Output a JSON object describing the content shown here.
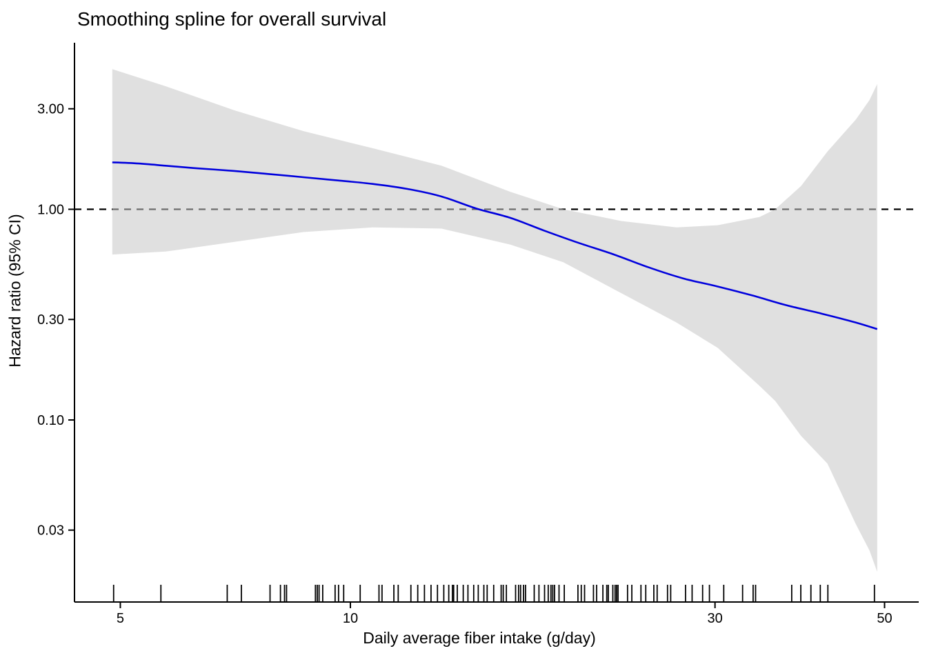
{
  "title": "Smoothing spline for overall survival",
  "colors": {
    "spline": "#0000dd",
    "ci_band_fill": "rgba(198,198,198,0.55)",
    "reference_line": "#000000",
    "axis": "#000000",
    "background": "#ffffff"
  },
  "chart_data": {
    "type": "line",
    "title": "Smoothing spline for overall survival",
    "xlabel": "Daily average fiber intake (g/day)",
    "ylabel": "Hazard ratio (95% CI)",
    "x_scale": "log10",
    "y_scale": "log10",
    "x_ticks": [
      5,
      10,
      30,
      50
    ],
    "y_ticks_labels": [
      "3.00",
      "1.00",
      "0.30",
      "0.10",
      "0.03"
    ],
    "y_ticks_values": [
      3.0,
      1.0,
      0.3,
      0.1,
      0.03
    ],
    "x_axis_range": [
      4.35,
      55.4
    ],
    "y_axis_range": [
      0.012,
      6.2
    ],
    "reference_hr": 1.0,
    "legend": "none",
    "grid": "off",
    "curve": {
      "x": [
        4.88,
        5.28,
        5.73,
        6.23,
        7.05,
        7.83,
        8.68,
        9.63,
        10.69,
        11.86,
        13.16,
        14.6,
        16.2,
        17.97,
        19.95,
        22.13,
        24.56,
        27.25,
        30.24,
        33.56,
        37.24,
        41.32,
        45.86,
        48.9
      ],
      "hr": [
        1.67,
        1.65,
        1.61,
        1.57,
        1.52,
        1.47,
        1.42,
        1.37,
        1.32,
        1.25,
        1.15,
        1.01,
        0.91,
        0.79,
        0.69,
        0.61,
        0.53,
        0.47,
        0.43,
        0.39,
        0.35,
        0.32,
        0.29,
        0.27
      ]
    },
    "ci_band": {
      "x": [
        4.88,
        5.73,
        7.05,
        8.68,
        10.69,
        13.16,
        16.2,
        19.0,
        22.62,
        26.72,
        30.24,
        34.32,
        35.97,
        38.88,
        42.1,
        45.86,
        47.78,
        48.9
      ],
      "upper": [
        4.63,
        3.84,
        2.95,
        2.35,
        1.95,
        1.61,
        1.21,
        1.0,
        0.88,
        0.82,
        0.84,
        0.92,
        1.0,
        1.29,
        1.88,
        2.67,
        3.3,
        3.93
      ],
      "lower": [
        0.61,
        0.63,
        0.7,
        0.78,
        0.82,
        0.81,
        0.68,
        0.56,
        0.4,
        0.29,
        0.22,
        0.145,
        0.123,
        0.084,
        0.062,
        0.032,
        0.024,
        0.019
      ]
    },
    "rug_x": [
      4.9,
      5.65,
      6.9,
      7.2,
      7.85,
      8.1,
      8.2,
      8.25,
      9.0,
      9.05,
      9.1,
      9.2,
      9.55,
      9.65,
      9.8,
      10.3,
      10.9,
      11.0,
      11.4,
      11.55,
      12.0,
      12.25,
      12.5,
      12.75,
      13.0,
      13.25,
      13.45,
      13.6,
      13.65,
      13.8,
      14.05,
      14.25,
      14.5,
      14.7,
      14.95,
      15.1,
      15.4,
      15.75,
      15.85,
      16.0,
      16.45,
      16.6,
      16.7,
      16.85,
      16.95,
      17.4,
      17.65,
      17.95,
      18.15,
      18.3,
      18.4,
      18.5,
      18.75,
      19.05,
      19.85,
      20.05,
      20.25,
      20.8,
      21.0,
      21.4,
      21.65,
      21.75,
      22.05,
      22.2,
      22.3,
      22.4,
      23.05,
      23.35,
      24.0,
      24.35,
      24.95,
      25.2,
      26.0,
      26.25,
      27.45,
      28.0,
      28.9,
      29.5,
      30.8,
      32.6,
      33.65,
      33.9,
      37.8,
      38.85,
      40.05,
      41.2,
      42.15,
      48.5
    ]
  }
}
